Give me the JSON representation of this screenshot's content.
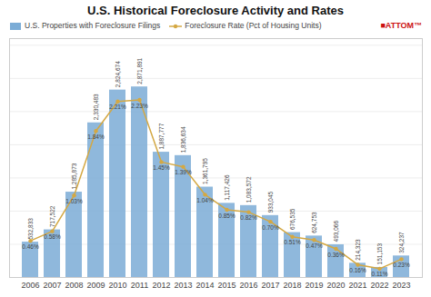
{
  "chart_data": {
    "type": "bar",
    "title": "U.S. Historical Foreclosure Activity and Rates",
    "categories": [
      "2006",
      "2007",
      "2008",
      "2009",
      "2010",
      "2011",
      "2012",
      "2013",
      "2014",
      "2015",
      "2016",
      "2017",
      "2018",
      "2019",
      "2020",
      "2021",
      "2022",
      "2023"
    ],
    "series": [
      {
        "name": "U.S. Properties with Foreclosure Filings",
        "type": "bar",
        "color": "#7bacd6",
        "values": [
          532833,
          717522,
          1285873,
          2330483,
          2824674,
          2871891,
          1887777,
          1836634,
          1361795,
          1117426,
          1083572,
          933045,
          676535,
          624753,
          493066,
          214323,
          151153,
          324237
        ],
        "value_labels": [
          "532,833",
          "717,522",
          "1,285,873",
          "2,330,483",
          "2,824,674",
          "2,871,891",
          "1,887,777",
          "1,836,634",
          "1,361,795",
          "1,117,426",
          "1,083,572",
          "933,045",
          "676,535",
          "624,753",
          "493,066",
          "214,323",
          "151,153",
          "324,237"
        ]
      },
      {
        "name": "Foreclosure Rate (Pct of Housing Units)",
        "type": "line",
        "color": "#d4a843",
        "marker": "circle",
        "axis": "y2",
        "values": [
          0.46,
          0.58,
          1.03,
          1.84,
          2.21,
          2.23,
          1.45,
          1.39,
          1.04,
          0.85,
          0.82,
          0.7,
          0.51,
          0.47,
          0.36,
          0.16,
          0.11,
          0.23
        ],
        "value_labels": [
          "0.46%",
          "0.58%",
          "1.03%",
          "1.84%",
          "2.21%",
          "2.23%",
          "1.45%",
          "1.39%",
          "1.04%",
          "0.85%",
          "0.82%",
          "0.70%",
          "0.51%",
          "0.47%",
          "0.36%",
          "0.16%",
          "0.11%",
          "0.23%"
        ]
      }
    ],
    "ylim": [
      0,
      3600000
    ],
    "yticks": [
      0,
      500000,
      1000000,
      1500000,
      2000000,
      2500000,
      3000000,
      3500000
    ],
    "y2lim": [
      0,
      3.0
    ],
    "grid": true,
    "tick_labels": "x",
    "data_labels": true,
    "legend": "upper left",
    "annotations": [
      {
        "text": "■ATTOM™",
        "color": "#cc1111"
      }
    ]
  }
}
